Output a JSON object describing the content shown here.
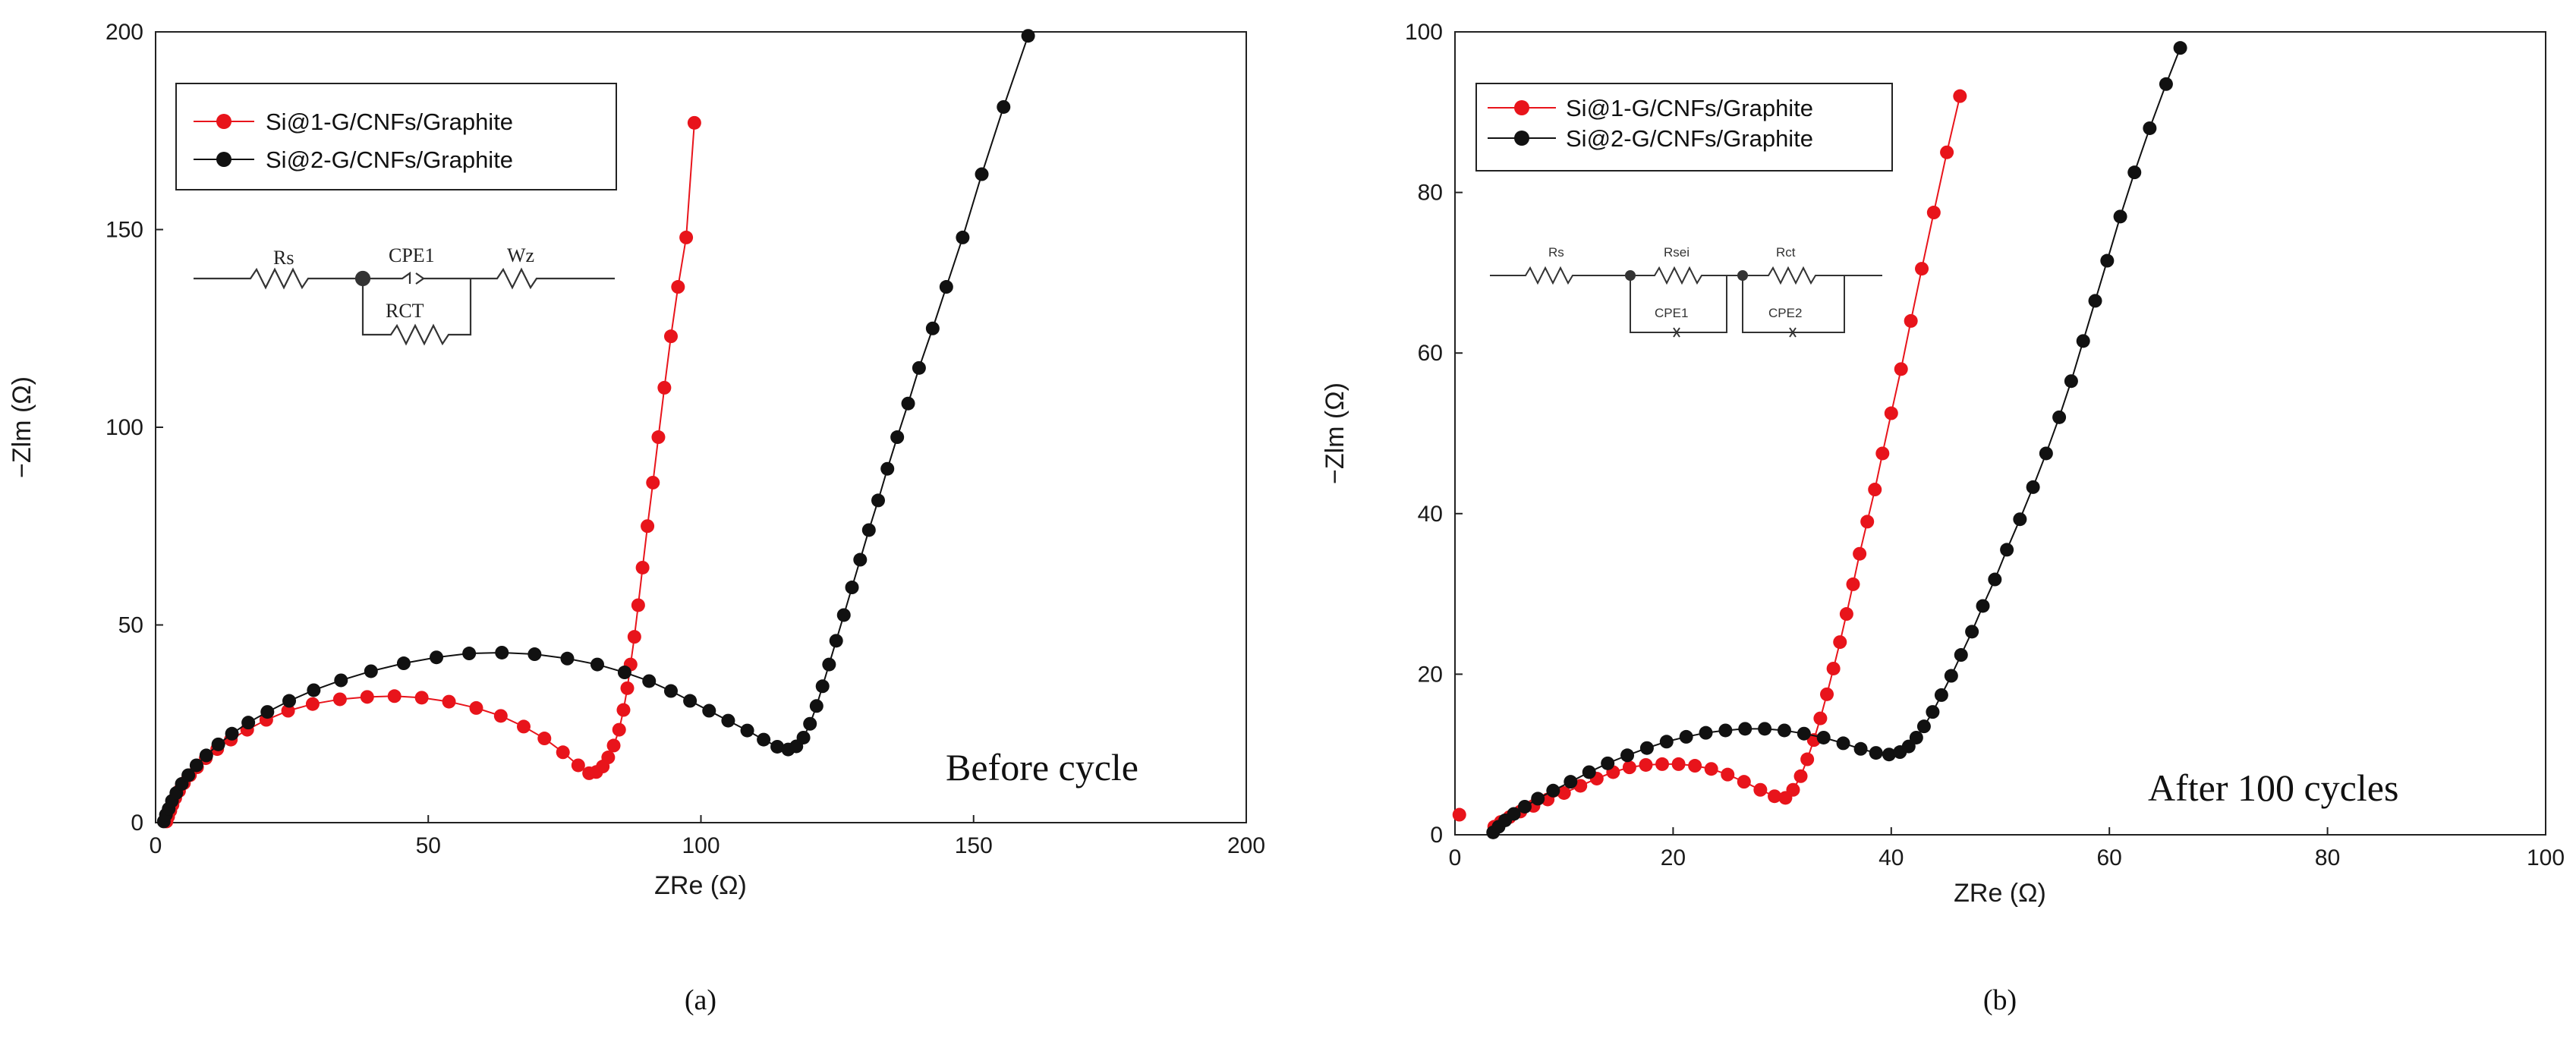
{
  "chart_data": [
    {
      "id": "a",
      "type": "scatter",
      "panel_label": "(a)",
      "annotation": "Before cycle",
      "xlabel": "ZRe (Ω)",
      "ylabel": "−Zlm (Ω)",
      "xlim": [
        0,
        200
      ],
      "ylim": [
        0,
        200
      ],
      "xticks": [
        0,
        50,
        100,
        150,
        200
      ],
      "yticks": [
        0,
        50,
        100,
        150,
        200
      ],
      "legend_position": "top-left",
      "equivalent_circuit": [
        "Rs",
        "CPE1",
        "Wz",
        "RCT"
      ],
      "series": [
        {
          "name": "Si@1-G/CNFs/Graphite",
          "color": "#e8141b",
          "x": [
            2.0,
            2.3,
            2.7,
            3.1,
            3.6,
            4.3,
            5.2,
            6.3,
            7.6,
            9.2,
            11.3,
            13.8,
            16.8,
            20.3,
            24.3,
            28.8,
            33.8,
            38.8,
            43.8,
            48.8,
            53.8,
            58.8,
            63.3,
            67.5,
            71.3,
            74.7,
            77.5,
            79.5,
            80.8,
            82.0,
            83.0,
            84.0,
            85.0,
            85.8,
            86.5,
            87.1,
            87.8,
            88.5,
            89.3,
            90.2,
            91.2,
            92.2,
            93.3,
            94.5,
            95.8,
            97.3,
            98.8
          ],
          "y": [
            0.3,
            1.5,
            3.0,
            4.5,
            6.2,
            8.0,
            10.0,
            12.0,
            14.0,
            16.3,
            18.6,
            21.0,
            23.5,
            26.0,
            28.3,
            30.0,
            31.2,
            31.8,
            32.0,
            31.6,
            30.6,
            29.0,
            27.0,
            24.3,
            21.3,
            17.8,
            14.5,
            12.5,
            12.8,
            14.2,
            16.5,
            19.5,
            23.5,
            28.5,
            34.0,
            40.0,
            47.0,
            55.0,
            64.5,
            75.0,
            86.0,
            97.5,
            110.0,
            123.0,
            135.5,
            148.0,
            177.0
          ]
        },
        {
          "name": "Si@2-G/CNFs/Graphite",
          "color": "#111111",
          "x": [
            1.5,
            1.9,
            2.4,
            3.0,
            3.8,
            4.8,
            6.0,
            7.5,
            9.3,
            11.5,
            14.0,
            17.0,
            20.5,
            24.5,
            29.0,
            34.0,
            39.5,
            45.5,
            51.5,
            57.5,
            63.5,
            69.5,
            75.5,
            81.0,
            86.0,
            90.5,
            94.5,
            98.0,
            101.5,
            105.0,
            108.5,
            111.5,
            114.0,
            116.0,
            117.5,
            118.8,
            120.0,
            121.2,
            122.3,
            123.5,
            124.8,
            126.2,
            127.7,
            129.2,
            130.8,
            132.5,
            134.2,
            136.0,
            138.0,
            140.0,
            142.5,
            145.0,
            148.0,
            151.5,
            155.5,
            160.0
          ],
          "y": [
            0.3,
            2.0,
            3.5,
            5.5,
            7.5,
            9.8,
            12.0,
            14.5,
            17.0,
            19.8,
            22.5,
            25.3,
            28.0,
            30.8,
            33.5,
            36.0,
            38.3,
            40.3,
            41.8,
            42.8,
            43.0,
            42.6,
            41.5,
            40.0,
            38.0,
            35.8,
            33.3,
            30.8,
            28.3,
            25.8,
            23.3,
            21.0,
            19.2,
            18.5,
            19.3,
            21.5,
            25.0,
            29.5,
            34.5,
            40.0,
            46.0,
            52.5,
            59.5,
            66.5,
            74.0,
            81.5,
            89.5,
            97.5,
            106.0,
            115.0,
            125.0,
            135.5,
            148.0,
            164.0,
            181.0,
            199.0
          ]
        }
      ]
    },
    {
      "id": "b",
      "type": "scatter",
      "panel_label": "(b)",
      "annotation": "After 100 cycles",
      "xlabel": "ZRe (Ω)",
      "ylabel": "−Zlm (Ω)",
      "xlim": [
        0,
        100
      ],
      "ylim": [
        0,
        100
      ],
      "xticks": [
        0,
        20,
        40,
        60,
        80,
        100
      ],
      "yticks": [
        0,
        20,
        40,
        60,
        80,
        100
      ],
      "legend_position": "top-left",
      "equivalent_circuit": [
        "Rs",
        "Rsei",
        "Rct",
        "CPE1",
        "CPE2"
      ],
      "series": [
        {
          "name": "Si@1-G/CNFs/Graphite",
          "color": "#e8141b",
          "x": [
            0.4,
            3.6,
            4.2,
            5.0,
            6.0,
            7.2,
            8.5,
            10.0,
            11.5,
            13.0,
            14.5,
            16.0,
            17.5,
            19.0,
            20.5,
            22.0,
            23.5,
            25.0,
            26.5,
            28.0,
            29.3,
            30.3,
            31.0,
            31.7,
            32.3,
            32.9,
            33.5,
            34.1,
            34.7,
            35.3,
            35.9,
            36.5,
            37.1,
            37.8,
            38.5,
            39.2,
            40.0,
            40.9,
            41.8,
            42.8,
            43.9,
            45.1,
            46.3
          ],
          "y": [
            2.5,
            1.0,
            1.6,
            2.2,
            2.9,
            3.6,
            4.4,
            5.2,
            6.1,
            7.0,
            7.8,
            8.4,
            8.7,
            8.8,
            8.8,
            8.6,
            8.2,
            7.5,
            6.6,
            5.6,
            4.8,
            4.6,
            5.6,
            7.3,
            9.4,
            11.8,
            14.5,
            17.5,
            20.7,
            24.0,
            27.5,
            31.2,
            35.0,
            39.0,
            43.0,
            47.5,
            52.5,
            58.0,
            64.0,
            70.5,
            77.5,
            85.0,
            92.0
          ]
        },
        {
          "name": "Si@2-G/CNFs/Graphite",
          "color": "#111111",
          "x": [
            3.5,
            4.0,
            4.6,
            5.4,
            6.4,
            7.6,
            9.0,
            10.6,
            12.3,
            14.0,
            15.8,
            17.6,
            19.4,
            21.2,
            23.0,
            24.8,
            26.6,
            28.4,
            30.2,
            32.0,
            33.8,
            35.6,
            37.2,
            38.6,
            39.8,
            40.8,
            41.6,
            42.3,
            43.0,
            43.8,
            44.6,
            45.5,
            46.4,
            47.4,
            48.4,
            49.5,
            50.6,
            51.8,
            53.0,
            54.2,
            55.4,
            56.5,
            57.6,
            58.7,
            59.8,
            61.0,
            62.3,
            63.7,
            65.2,
            66.5
          ],
          "y": [
            0.3,
            1.0,
            1.8,
            2.6,
            3.5,
            4.5,
            5.5,
            6.6,
            7.8,
            8.9,
            9.9,
            10.8,
            11.6,
            12.2,
            12.7,
            13.0,
            13.2,
            13.2,
            13.0,
            12.6,
            12.1,
            11.4,
            10.7,
            10.2,
            10.0,
            10.3,
            11.0,
            12.1,
            13.5,
            15.3,
            17.4,
            19.8,
            22.4,
            25.3,
            28.5,
            31.8,
            35.5,
            39.3,
            43.3,
            47.5,
            52.0,
            56.5,
            61.5,
            66.5,
            71.5,
            77.0,
            82.5,
            88.0,
            93.5,
            98.0
          ]
        }
      ]
    }
  ]
}
